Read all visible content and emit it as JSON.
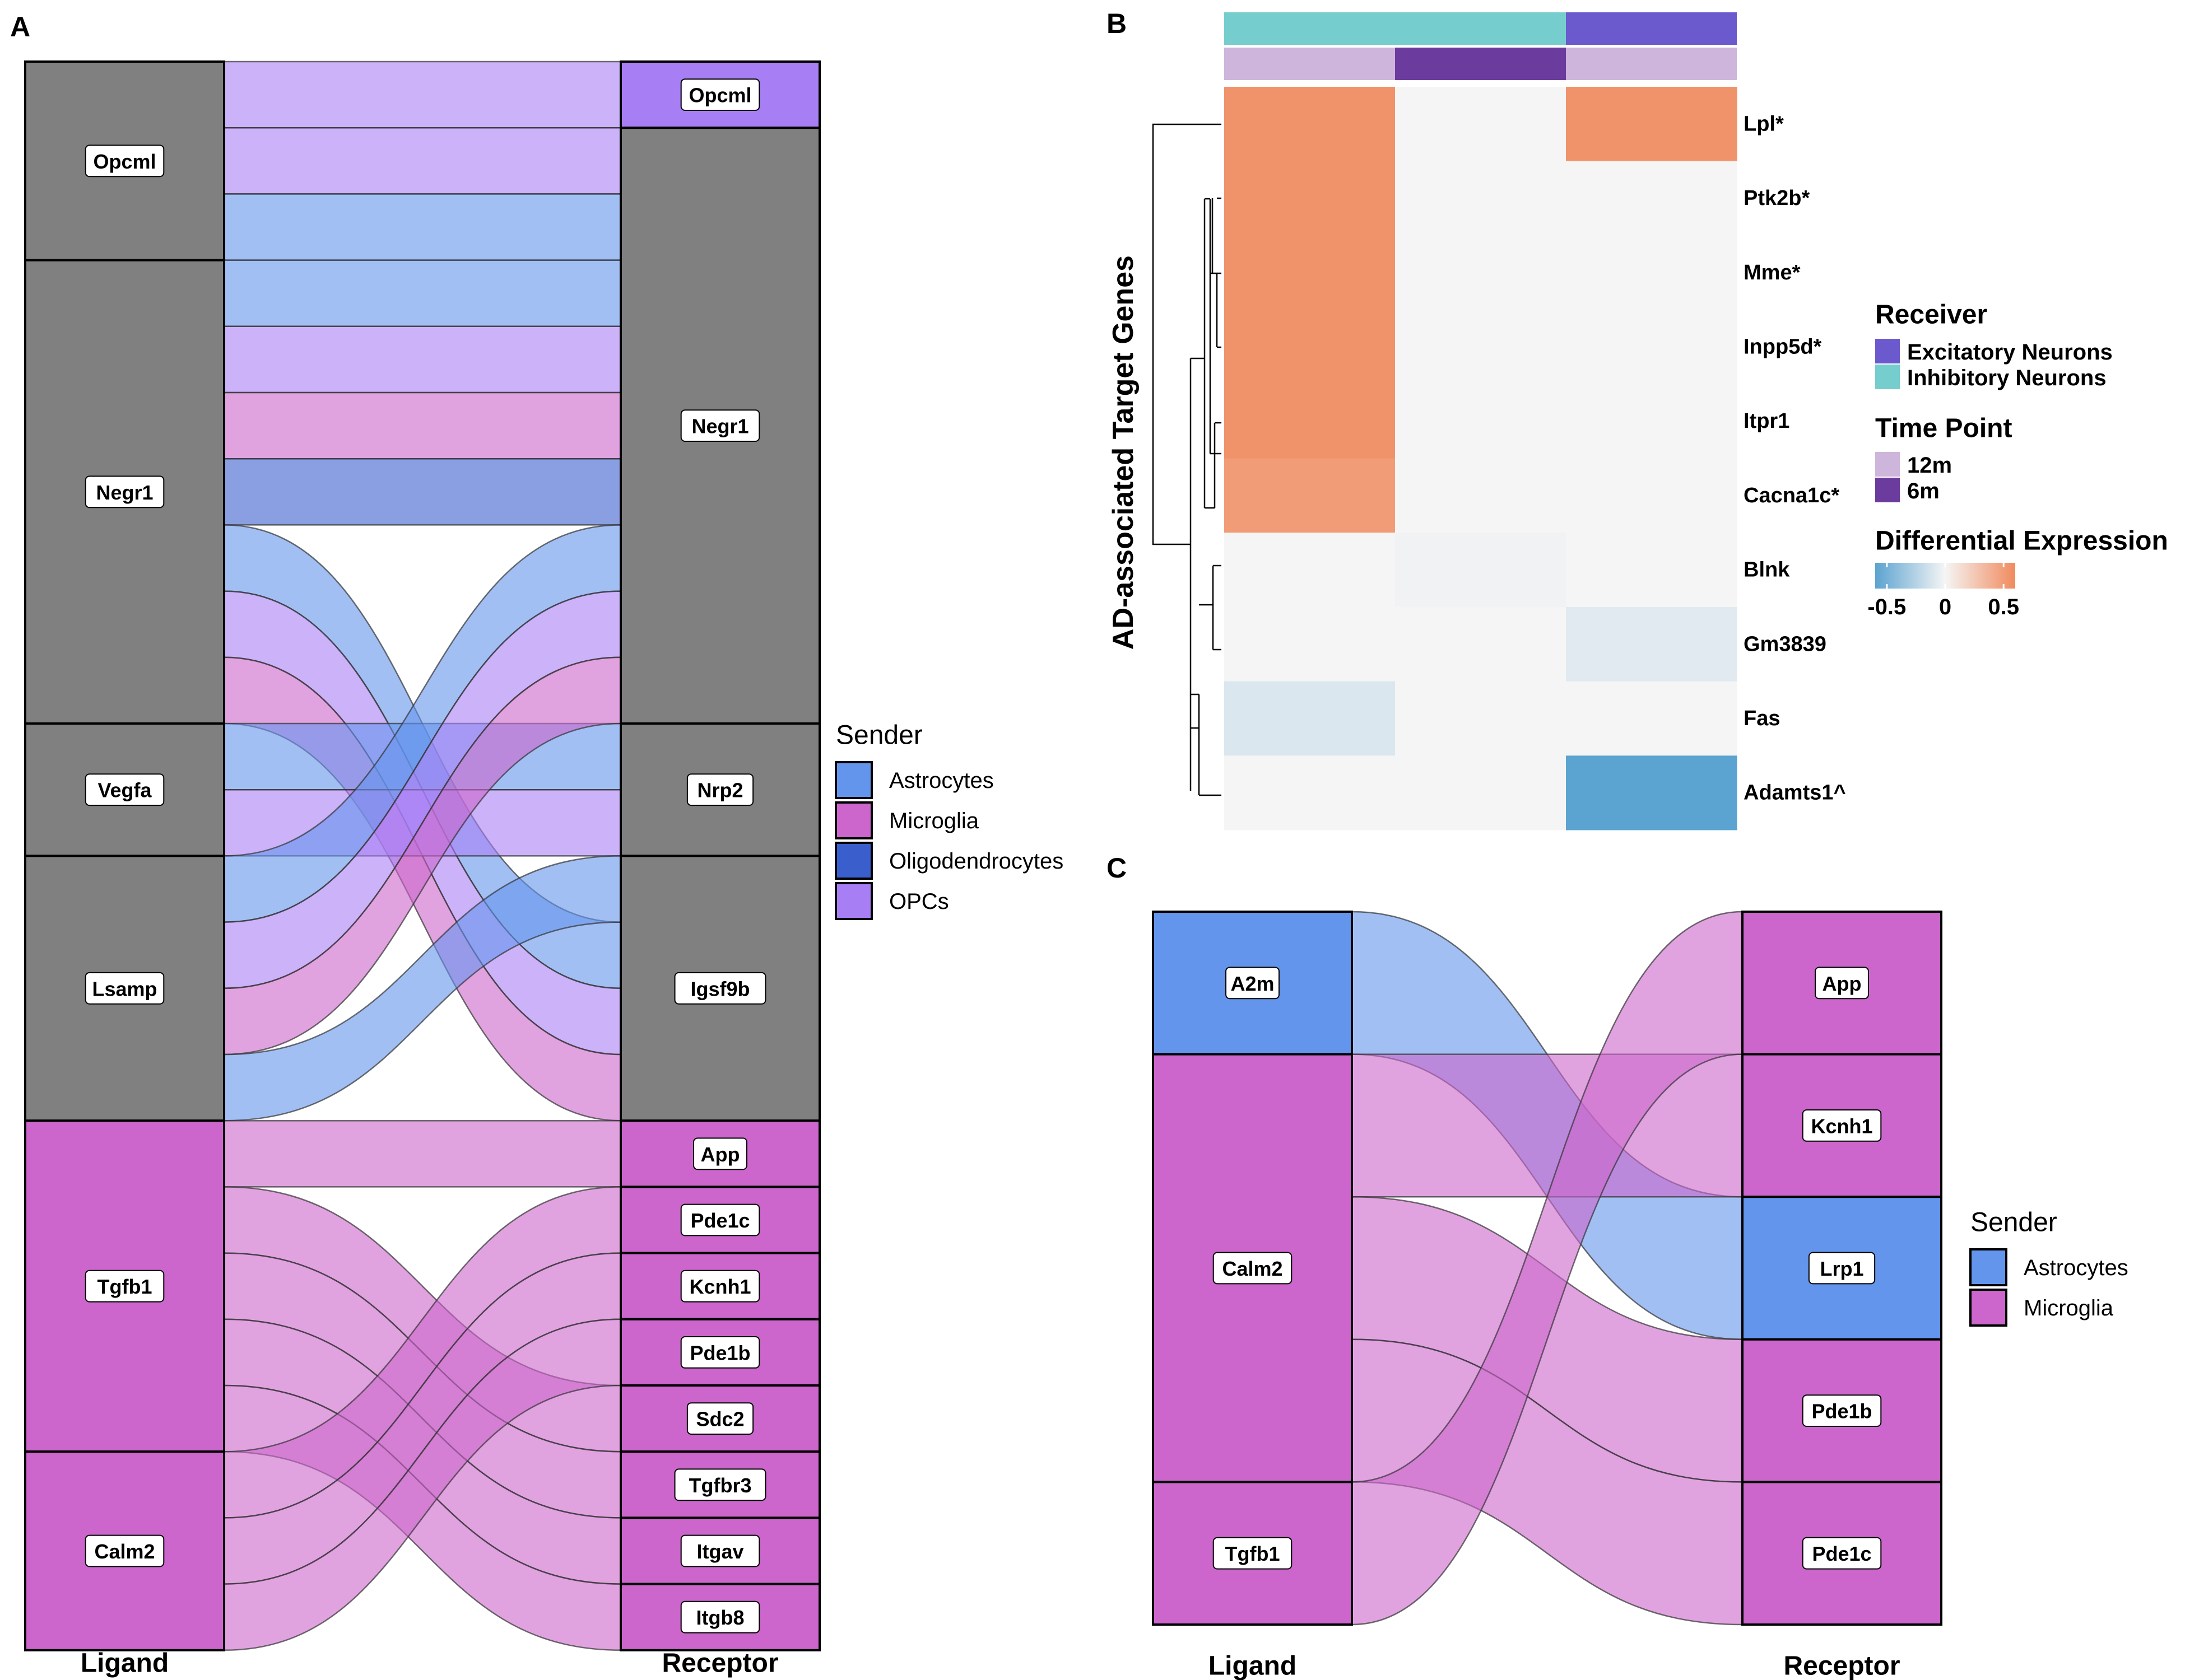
{
  "colors": {
    "Astrocytes": "#6495ED",
    "Microglia": "#CC66CC",
    "Oligodendrocytes": "#3A5FCD",
    "OPCs": "#A87EF5",
    "grey_node": "#808080",
    "excitatory": "#6A5ACD",
    "inhibitory": "#76CDCD",
    "tp_12m": "#CDB5DB",
    "tp_6m": "#6B3B9E",
    "heat_neg": "#5BA3D0",
    "heat_mid": "#F5F5F5",
    "heat_pos": "#F08A5D"
  },
  "chart_data": [
    {
      "panel": "A",
      "type": "alluvial",
      "xlabel_left": "Ligand",
      "xlabel_right": "Receptor",
      "legend": {
        "title": "Sender",
        "entries": [
          "Astrocytes",
          "Microglia",
          "Oligodendrocytes",
          "OPCs"
        ]
      },
      "ligands": [
        {
          "name": "Opcml",
          "sender": "grey"
        },
        {
          "name": "Negr1",
          "sender": "grey"
        },
        {
          "name": "Vegfa",
          "sender": "grey"
        },
        {
          "name": "Lsamp",
          "sender": "grey"
        },
        {
          "name": "Tgfb1",
          "sender": "Microglia"
        },
        {
          "name": "Calm2",
          "sender": "Microglia"
        }
      ],
      "receptors": [
        {
          "name": "Opcml",
          "sender": "OPCs"
        },
        {
          "name": "Negr1",
          "sender": "grey"
        },
        {
          "name": "Nrp2",
          "sender": "grey"
        },
        {
          "name": "Igsf9b",
          "sender": "grey"
        },
        {
          "name": "App",
          "sender": "Microglia"
        },
        {
          "name": "Pde1c",
          "sender": "Microglia"
        },
        {
          "name": "Kcnh1",
          "sender": "Microglia"
        },
        {
          "name": "Pde1b",
          "sender": "Microglia"
        },
        {
          "name": "Sdc2",
          "sender": "Microglia"
        },
        {
          "name": "Tgfbr3",
          "sender": "Microglia"
        },
        {
          "name": "Itgav",
          "sender": "Microglia"
        },
        {
          "name": "Itgb8",
          "sender": "Microglia"
        }
      ],
      "flows": [
        {
          "ligand": "Opcml",
          "receptor": "Opcml",
          "sender": "OPCs",
          "ls": 0,
          "rs": 0
        },
        {
          "ligand": "Opcml",
          "receptor": "Negr1",
          "sender": "OPCs",
          "ls": 1,
          "rs": 1
        },
        {
          "ligand": "Opcml",
          "receptor": "Negr1",
          "sender": "Astrocytes",
          "ls": 2,
          "rs": 2
        },
        {
          "ligand": "Negr1",
          "receptor": "Negr1",
          "sender": "Astrocytes",
          "ls": 3,
          "rs": 3
        },
        {
          "ligand": "Negr1",
          "receptor": "Negr1",
          "sender": "OPCs",
          "ls": 4,
          "rs": 4
        },
        {
          "ligand": "Negr1",
          "receptor": "Negr1",
          "sender": "Microglia",
          "ls": 5,
          "rs": 5
        },
        {
          "ligand": "Negr1",
          "receptor": "Negr1",
          "sender": "Oligodendrocytes",
          "ls": 6,
          "rs": 6
        },
        {
          "ligand": "Negr1",
          "receptor": "Igsf9b",
          "sender": "Astrocytes",
          "ls": 7,
          "rs": 13
        },
        {
          "ligand": "Negr1",
          "receptor": "Igsf9b",
          "sender": "OPCs",
          "ls": 8,
          "rs": 14
        },
        {
          "ligand": "Negr1",
          "receptor": "Igsf9b",
          "sender": "Microglia",
          "ls": 9,
          "rs": 15
        },
        {
          "ligand": "Vegfa",
          "receptor": "Nrp2",
          "sender": "Astrocytes",
          "ls": 10,
          "rs": 10
        },
        {
          "ligand": "Vegfa",
          "receptor": "Nrp2",
          "sender": "OPCs",
          "ls": 11,
          "rs": 11
        },
        {
          "ligand": "Lsamp",
          "receptor": "Negr1",
          "sender": "Astrocytes",
          "ls": 12,
          "rs": 7
        },
        {
          "ligand": "Lsamp",
          "receptor": "Negr1",
          "sender": "OPCs",
          "ls": 13,
          "rs": 8
        },
        {
          "ligand": "Lsamp",
          "receptor": "Negr1",
          "sender": "Microglia",
          "ls": 14,
          "rs": 9
        },
        {
          "ligand": "Lsamp",
          "receptor": "Igsf9b",
          "sender": "Astrocytes",
          "ls": 15,
          "rs": 12
        },
        {
          "ligand": "Tgfb1",
          "receptor": "App",
          "sender": "Microglia",
          "ls": 16,
          "rs": 16
        },
        {
          "ligand": "Tgfb1",
          "receptor": "Sdc2",
          "sender": "Microglia",
          "ls": 17,
          "rs": 20
        },
        {
          "ligand": "Tgfb1",
          "receptor": "Tgfbr3",
          "sender": "Microglia",
          "ls": 18,
          "rs": 21
        },
        {
          "ligand": "Tgfb1",
          "receptor": "Itgav",
          "sender": "Microglia",
          "ls": 19,
          "rs": 22
        },
        {
          "ligand": "Tgfb1",
          "receptor": "Itgb8",
          "sender": "Microglia",
          "ls": 20,
          "rs": 23
        },
        {
          "ligand": "Calm2",
          "receptor": "Pde1c",
          "sender": "Microglia",
          "ls": 21,
          "rs": 17
        },
        {
          "ligand": "Calm2",
          "receptor": "Kcnh1",
          "sender": "Microglia",
          "ls": 22,
          "rs": 18
        },
        {
          "ligand": "Calm2",
          "receptor": "Pde1b",
          "sender": "Microglia",
          "ls": 23,
          "rs": 19
        }
      ]
    },
    {
      "panel": "B",
      "type": "heatmap",
      "ylabel": "AD-associated Target Genes",
      "columns": [
        {
          "receiver": "Inhibitory Neurons",
          "time": "12m"
        },
        {
          "receiver": "Inhibitory Neurons",
          "time": "6m"
        },
        {
          "receiver": "Excitatory Neurons",
          "time": "12m"
        }
      ],
      "rows": [
        "Lpl*",
        "Ptk2b*",
        "Mme*",
        "Inpp5d*",
        "Itpr1",
        "Cacna1c*",
        "Blnk",
        "Gm3839",
        "Fas",
        "Adamts1^"
      ],
      "values": [
        [
          0.55,
          0.0,
          0.55
        ],
        [
          0.55,
          0.0,
          0.0
        ],
        [
          0.55,
          0.0,
          0.0
        ],
        [
          0.55,
          0.0,
          0.0
        ],
        [
          0.55,
          0.0,
          0.0
        ],
        [
          0.5,
          0.0,
          0.0
        ],
        [
          0.0,
          -0.02,
          0.0
        ],
        [
          0.0,
          0.0,
          -0.08
        ],
        [
          -0.1,
          0.0,
          0.0
        ],
        [
          0.0,
          0.0,
          -0.6
        ]
      ],
      "legend_receiver": {
        "title": "Receiver",
        "entries": [
          "Excitatory Neurons",
          "Inhibitory Neurons"
        ]
      },
      "legend_time": {
        "title": "Time Point",
        "entries": [
          "12m",
          "6m"
        ]
      },
      "legend_de": {
        "title": "Differential Expression",
        "ticks": [
          "-0.5",
          "0",
          "0.5"
        ],
        "range": [
          -0.6,
          0.6
        ]
      }
    },
    {
      "panel": "C",
      "type": "alluvial",
      "xlabel_left": "Ligand",
      "xlabel_right": "Receptor",
      "legend": {
        "title": "Sender",
        "entries": [
          "Astrocytes",
          "Microglia"
        ]
      },
      "ligands": [
        {
          "name": "A2m",
          "sender": "Astrocytes"
        },
        {
          "name": "Calm2",
          "sender": "Microglia"
        },
        {
          "name": "Tgfb1",
          "sender": "Microglia"
        }
      ],
      "receptors": [
        {
          "name": "App",
          "sender": "Microglia"
        },
        {
          "name": "Kcnh1",
          "sender": "Microglia"
        },
        {
          "name": "Lrp1",
          "sender": "Astrocytes"
        },
        {
          "name": "Pde1b",
          "sender": "Microglia"
        },
        {
          "name": "Pde1c",
          "sender": "Microglia"
        }
      ],
      "flows": [
        {
          "ligand": "A2m",
          "receptor": "Lrp1",
          "sender": "Astrocytes",
          "ls": 0,
          "rs": 2
        },
        {
          "ligand": "Calm2",
          "receptor": "Kcnh1",
          "sender": "Microglia",
          "ls": 1,
          "rs": 1
        },
        {
          "ligand": "Calm2",
          "receptor": "Pde1b",
          "sender": "Microglia",
          "ls": 2,
          "rs": 3
        },
        {
          "ligand": "Calm2",
          "receptor": "Pde1c",
          "sender": "Microglia",
          "ls": 3,
          "rs": 4
        },
        {
          "ligand": "Tgfb1",
          "receptor": "App",
          "sender": "Microglia",
          "ls": 4,
          "rs": 0
        }
      ]
    }
  ]
}
